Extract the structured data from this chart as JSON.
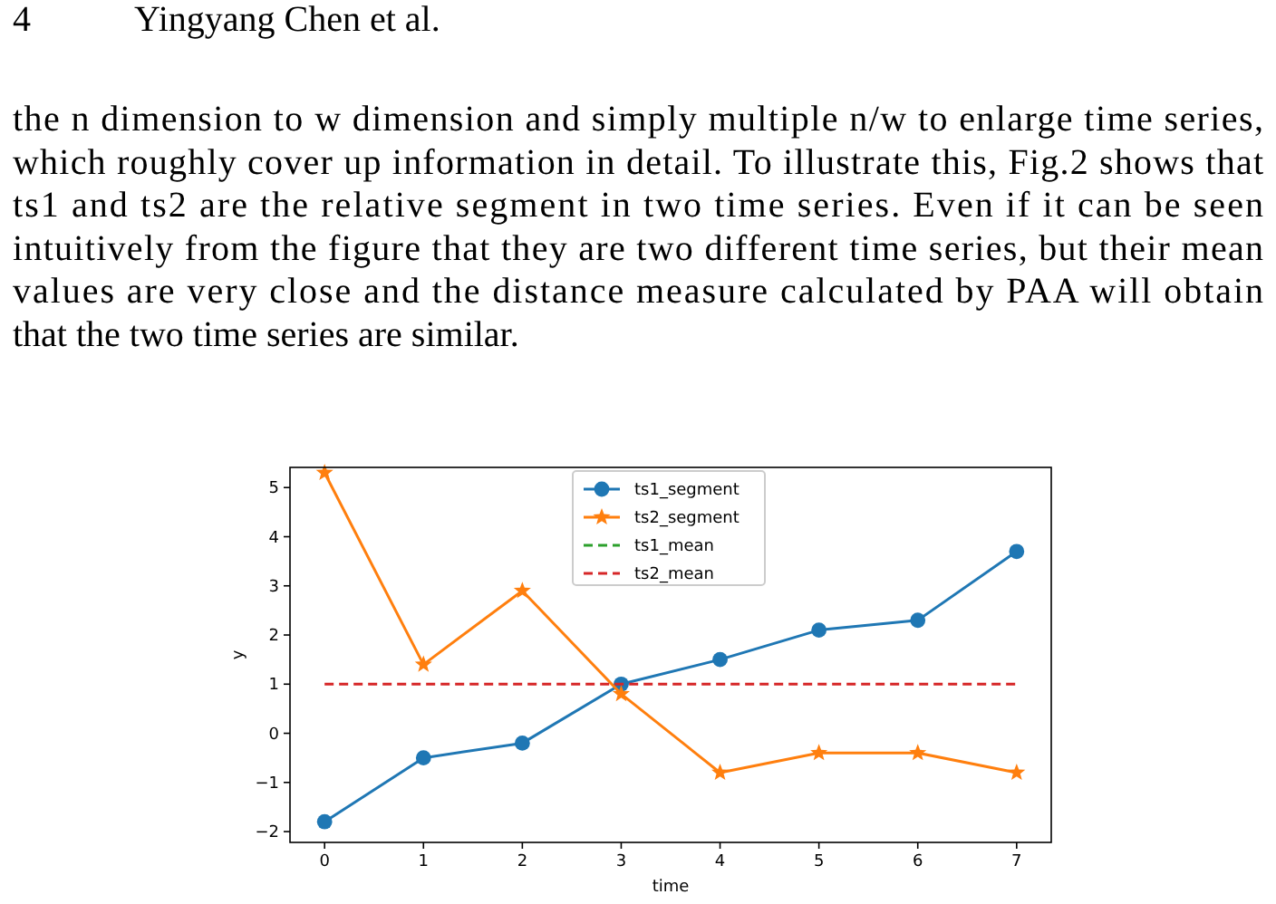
{
  "chart_data": {
    "type": "line",
    "xlabel": "time",
    "ylabel": "y",
    "annotations": [
      "4",
      "Yingyang Chen et al.",
      "the n dimension to w dimension and simply multiple n/w to enlarge time series,",
      "which roughly cover up information in detail. To illustrate this, Fig.2 shows that",
      "ts1 and ts2 are the relative segment in two time series. Even if it can be seen",
      "intuitively from the figure that they are two different time series, but their mean",
      "values are very close and the distance measure calculated by PAA will obtain",
      "that the two time series are similar."
    ],
    "x": [
      0,
      1,
      2,
      3,
      4,
      5,
      6,
      7
    ],
    "series": [
      {
        "name": "ts1_segment",
        "color": "#1f77b4",
        "marker": "circle",
        "values": [
          -1.8,
          -0.5,
          -0.2,
          1.0,
          1.5,
          2.1,
          2.3,
          3.7
        ]
      },
      {
        "name": "ts2_segment",
        "color": "#ff7f0e",
        "marker": "star",
        "values": [
          5.3,
          1.4,
          2.9,
          0.8,
          -0.8,
          -0.4,
          -0.4,
          -0.8
        ]
      },
      {
        "name": "ts1_mean",
        "color": "#2ca02c",
        "line_style": "dashed",
        "values": [
          null,
          null,
          null,
          null,
          null,
          null,
          null,
          null
        ]
      },
      {
        "name": "ts2_mean",
        "color": "#d62728",
        "line_style": "dashed",
        "x": [
          0,
          7
        ],
        "values": [
          1,
          1
        ]
      }
    ],
    "xlim": [
      -0.35,
      7.35
    ],
    "ylim": [
      -2.22,
      5.41
    ],
    "xticks": [
      0,
      1,
      2,
      3,
      4,
      5,
      6,
      7
    ],
    "yticks": [
      -2,
      -1,
      0,
      1,
      2,
      3,
      4,
      5
    ],
    "grid": false,
    "legend": "top"
  }
}
